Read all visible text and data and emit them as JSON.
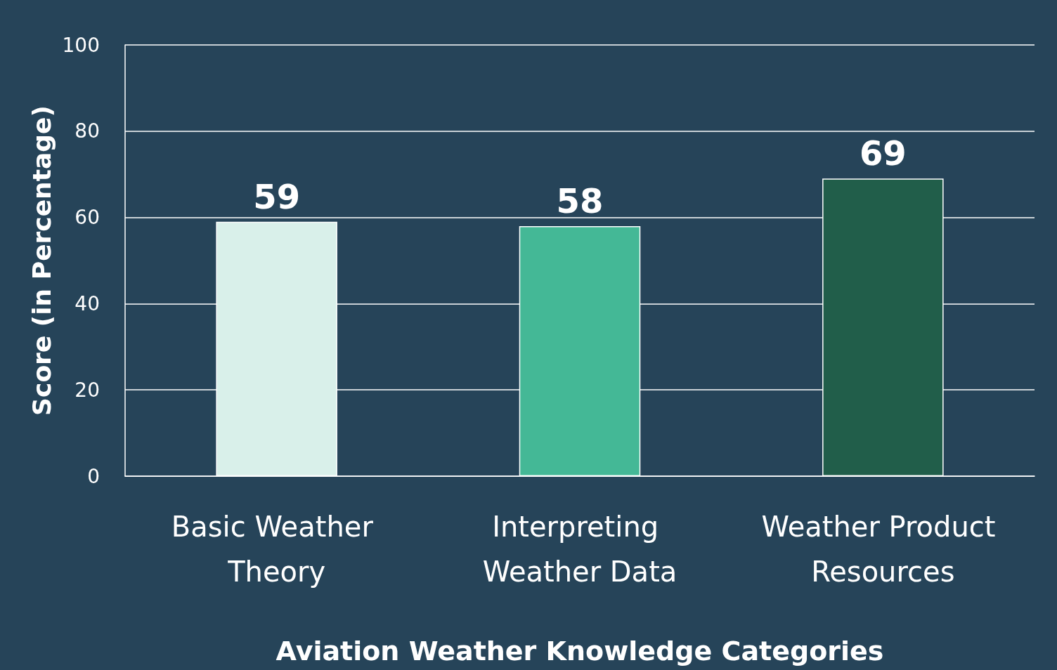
{
  "chart_data": {
    "type": "bar",
    "xlabel": "Aviation Weather Knowledge Categories",
    "ylabel": "Score (in Percentage)",
    "categories": [
      "Basic Weather Theory",
      "Interpreting Weather Data",
      "Weather Product Resources"
    ],
    "values": [
      59,
      58,
      69
    ],
    "colors": [
      "#d9f0ea",
      "#44b896",
      "#215e4a"
    ],
    "ylim": [
      0,
      100
    ],
    "yticks": [
      0,
      20,
      40,
      60,
      80,
      100
    ],
    "grid": "y",
    "data_labels": true
  }
}
